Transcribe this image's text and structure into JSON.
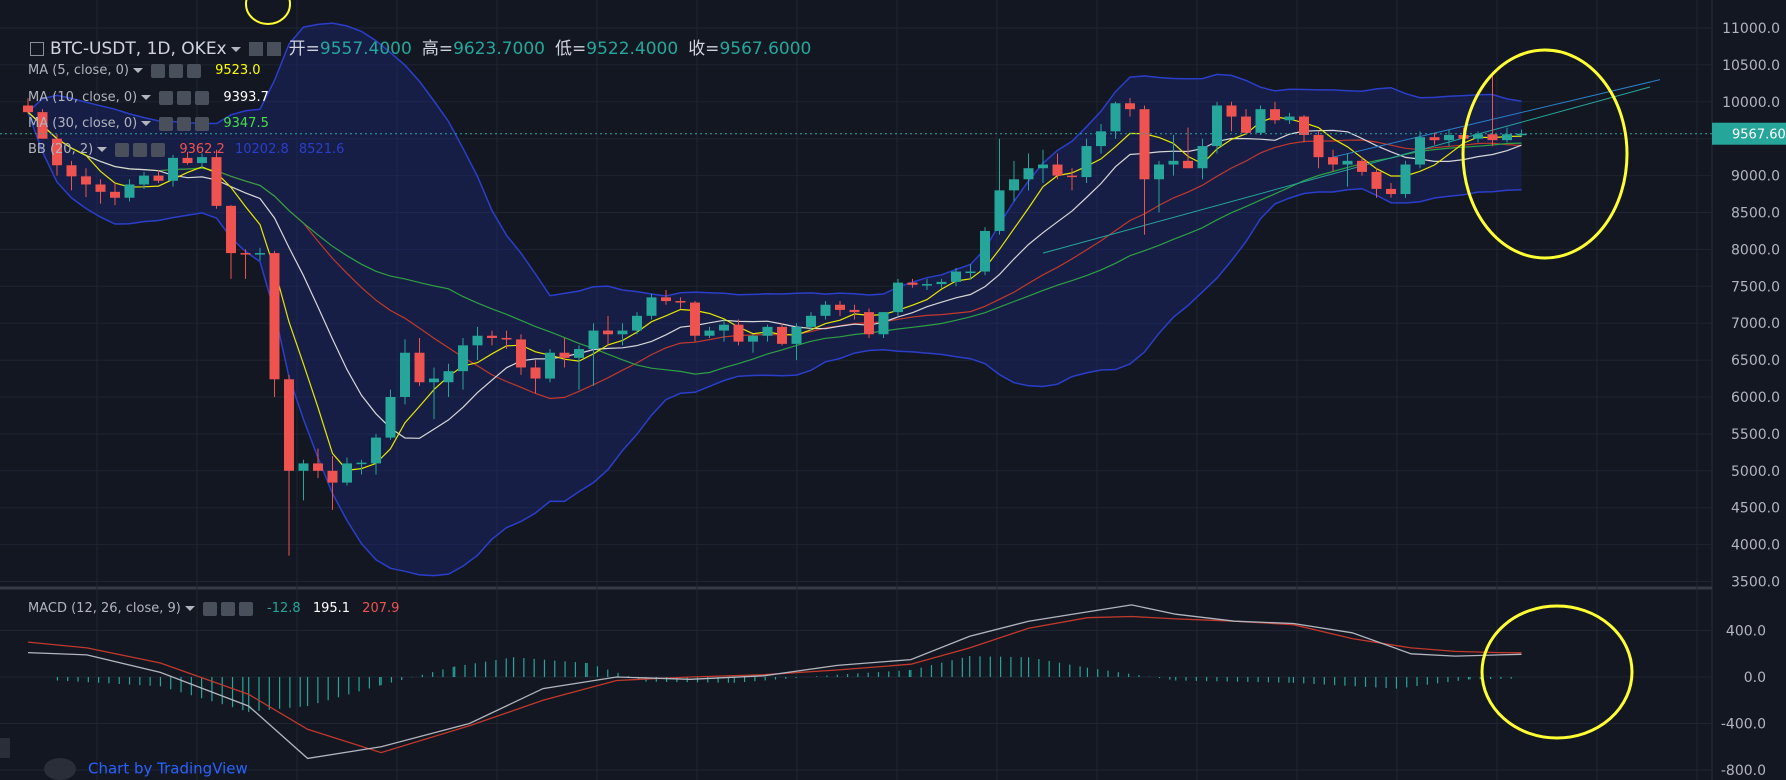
{
  "header": {
    "symbol": "BTC-USDT, 1D, OKEx",
    "open_label": "开=",
    "open": "9557.4000",
    "high_label": "高=",
    "high": "9623.7000",
    "low_label": "低=",
    "low": "9522.4000",
    "close_label": "收=",
    "close": "9567.6000"
  },
  "indicators": {
    "ma5": {
      "label": "MA (5, close, 0)",
      "value": "9523.0",
      "color": "#ffff00"
    },
    "ma10": {
      "label": "MA (10, close, 0)",
      "value": "9393.7",
      "color": "#ffffff"
    },
    "ma30": {
      "label": "MA (30, close, 0)",
      "value": "9347.5",
      "color": "#44e044"
    },
    "bb": {
      "label": "BB (20, 2)",
      "basis": "9362.2",
      "upper": "10202.8",
      "lower": "8521.6"
    },
    "macd": {
      "label": "MACD (12, 26, close, 9)",
      "hist": "-12.8",
      "macd": "195.1",
      "signal": "207.9"
    }
  },
  "price_badge": "9567.600",
  "footer": {
    "attribution": "Chart by TradingView"
  },
  "colors": {
    "background": "#131722",
    "up": "#26a69a",
    "down": "#ef5350",
    "bb_band": "#1e2a8a",
    "bb_line": "#2b3ec9",
    "ma5": "#e6e600",
    "ma10": "#d7d7d7",
    "ma30": "#2ea043",
    "bb_basis": "#c0392b",
    "macd_line": "#b2b5be",
    "signal_line": "#c0392b",
    "highlight_circle": "#ffff33"
  },
  "chart_data": [
    {
      "type": "candlestick",
      "title": "BTC-USDT, 1D, OKEx",
      "ylim": [
        3500,
        11000
      ],
      "y_ticks": [
        "11000.0",
        "10500.0",
        "10000.0",
        "9500.0",
        "9000.0",
        "8500.0",
        "8000.0",
        "7500.0",
        "7000.0",
        "6500.0",
        "6000.0",
        "5500.0",
        "5000.0",
        "4500.0",
        "4000.0",
        "3500.0"
      ],
      "candles": [
        [
          9950,
          10050,
          9840,
          9860
        ],
        [
          9860,
          9900,
          9500,
          9500
        ],
        [
          9500,
          9560,
          9000,
          9140
        ],
        [
          9140,
          9200,
          8800,
          8990
        ],
        [
          8990,
          9100,
          8710,
          8880
        ],
        [
          8880,
          8950,
          8620,
          8780
        ],
        [
          8780,
          8900,
          8600,
          8700
        ],
        [
          8700,
          8950,
          8650,
          8880
        ],
        [
          8880,
          9050,
          8820,
          9000
        ],
        [
          9000,
          9080,
          8900,
          8930
        ],
        [
          8930,
          9280,
          8850,
          9240
        ],
        [
          9240,
          9320,
          9150,
          9170
        ],
        [
          9170,
          9300,
          9100,
          9250
        ],
        [
          9250,
          9350,
          8550,
          8590
        ],
        [
          8590,
          8600,
          7600,
          7950
        ],
        [
          7950,
          8000,
          7600,
          7940
        ],
        [
          7940,
          8020,
          7850,
          7950
        ],
        [
          7950,
          7980,
          6000,
          6240
        ],
        [
          6240,
          6300,
          3850,
          5000
        ],
        [
          5000,
          5150,
          4600,
          5100
        ],
        [
          5100,
          5300,
          4900,
          5000
        ],
        [
          5000,
          5200,
          4470,
          4840
        ],
        [
          4840,
          5180,
          4800,
          5100
        ],
        [
          5100,
          5150,
          4950,
          5110
        ],
        [
          5100,
          5500,
          4950,
          5450
        ],
        [
          5450,
          6100,
          5420,
          6000
        ],
        [
          6000,
          6780,
          5900,
          6600
        ],
        [
          6600,
          6800,
          6150,
          6200
        ],
        [
          6200,
          6400,
          5700,
          6250
        ],
        [
          6200,
          6450,
          6000,
          6350
        ],
        [
          6350,
          6800,
          6100,
          6700
        ],
        [
          6700,
          6950,
          6500,
          6830
        ],
        [
          6830,
          6900,
          6700,
          6800
        ],
        [
          6800,
          6900,
          6650,
          6780
        ],
        [
          6780,
          6850,
          6300,
          6400
        ],
        [
          6400,
          6500,
          6050,
          6250
        ],
        [
          6250,
          6650,
          6200,
          6600
        ],
        [
          6600,
          6800,
          6400,
          6530
        ],
        [
          6530,
          6700,
          6100,
          6650
        ],
        [
          6650,
          7000,
          6150,
          6900
        ],
        [
          6900,
          7100,
          6700,
          6850
        ],
        [
          6850,
          7000,
          6700,
          6900
        ],
        [
          6900,
          7150,
          6850,
          7100
        ],
        [
          7100,
          7400,
          7050,
          7350
        ],
        [
          7350,
          7450,
          7250,
          7300
        ],
        [
          7300,
          7350,
          7200,
          7280
        ],
        [
          7280,
          7300,
          6750,
          6830
        ],
        [
          6830,
          6950,
          6800,
          6900
        ],
        [
          6900,
          7050,
          6750,
          6980
        ],
        [
          6980,
          7050,
          6700,
          6750
        ],
        [
          6750,
          6850,
          6600,
          6830
        ],
        [
          6830,
          6980,
          6750,
          6950
        ],
        [
          6950,
          7000,
          6700,
          6720
        ],
        [
          6720,
          7000,
          6500,
          6950
        ],
        [
          6950,
          7150,
          6900,
          7100
        ],
        [
          7100,
          7300,
          7050,
          7250
        ],
        [
          7250,
          7300,
          7100,
          7180
        ],
        [
          7180,
          7250,
          7050,
          7150
        ],
        [
          7150,
          7200,
          6800,
          6850
        ],
        [
          6850,
          7150,
          6800,
          7150
        ],
        [
          7150,
          7600,
          7100,
          7550
        ],
        [
          7550,
          7600,
          7480,
          7520
        ],
        [
          7520,
          7600,
          7450,
          7530
        ],
        [
          7530,
          7600,
          7480,
          7560
        ],
        [
          7560,
          7750,
          7500,
          7700
        ],
        [
          7700,
          7800,
          7600,
          7700
        ],
        [
          7700,
          8300,
          7650,
          8250
        ],
        [
          8250,
          9500,
          8200,
          8800
        ],
        [
          8800,
          9200,
          8650,
          8950
        ],
        [
          8950,
          9300,
          8800,
          9100
        ],
        [
          9100,
          9350,
          8900,
          9150
        ],
        [
          9150,
          9300,
          8950,
          9000
        ],
        [
          9000,
          9100,
          8800,
          8980
        ],
        [
          8980,
          9500,
          8900,
          9400
        ],
        [
          9400,
          9700,
          9300,
          9600
        ],
        [
          9600,
          10000,
          9500,
          9980
        ],
        [
          9980,
          10050,
          9800,
          9900
        ],
        [
          9900,
          9950,
          8200,
          8950
        ],
        [
          8950,
          9200,
          8500,
          9150
        ],
        [
          9150,
          9550,
          9000,
          9200
        ],
        [
          9200,
          9650,
          9100,
          9100
        ],
        [
          9100,
          9500,
          8950,
          9400
        ],
        [
          9400,
          10000,
          9300,
          9950
        ],
        [
          9950,
          10000,
          9600,
          9800
        ],
        [
          9800,
          9900,
          9550,
          9580
        ],
        [
          9580,
          9950,
          9550,
          9900
        ],
        [
          9900,
          10000,
          9700,
          9750
        ],
        [
          9750,
          9850,
          9700,
          9800
        ],
        [
          9800,
          9820,
          9450,
          9550
        ],
        [
          9550,
          9600,
          9100,
          9250
        ],
        [
          9250,
          9350,
          9050,
          9150
        ],
        [
          9150,
          9300,
          8850,
          9200
        ],
        [
          9200,
          9250,
          9000,
          9050
        ],
        [
          9050,
          9100,
          8700,
          8820
        ],
        [
          8820,
          8900,
          8700,
          8750
        ],
        [
          8750,
          9200,
          8700,
          9150
        ],
        [
          9150,
          9600,
          9100,
          9520
        ],
        [
          9520,
          9580,
          9420,
          9480
        ],
        [
          9480,
          9620,
          9400,
          9550
        ],
        [
          9550,
          9650,
          9450,
          9500
        ],
        [
          9500,
          9600,
          9450,
          9560
        ],
        [
          9560,
          10350,
          9400,
          9480
        ],
        [
          9480,
          9650,
          9450,
          9560
        ],
        [
          9557.4,
          9623.7,
          9522.4,
          9567.6
        ]
      ]
    },
    {
      "type": "line",
      "title": "MACD (12, 26, close, 9)",
      "ylim": [
        -850,
        600
      ],
      "y_ticks": [
        "400.0",
        "0.0",
        "-400.0",
        "-800.0"
      ],
      "series": [
        {
          "name": "MACD",
          "points": [
            [
              0,
              210
            ],
            [
              8,
              190
            ],
            [
              18,
              40
            ],
            [
              30,
              -250
            ],
            [
              38,
              -700
            ],
            [
              48,
              -600
            ],
            [
              60,
              -400
            ],
            [
              70,
              -100
            ],
            [
              80,
              0
            ],
            [
              90,
              -20
            ],
            [
              100,
              10
            ],
            [
              110,
              100
            ],
            [
              120,
              150
            ],
            [
              128,
              350
            ],
            [
              136,
              480
            ],
            [
              144,
              560
            ],
            [
              150,
              620
            ],
            [
              156,
              540
            ],
            [
              164,
              480
            ],
            [
              172,
              460
            ],
            [
              180,
              380
            ],
            [
              188,
              200
            ],
            [
              194,
              180
            ],
            [
              200,
              190
            ],
            [
              203,
              195
            ]
          ]
        },
        {
          "name": "Signal",
          "points": [
            [
              0,
              300
            ],
            [
              8,
              250
            ],
            [
              18,
              120
            ],
            [
              30,
              -150
            ],
            [
              38,
              -450
            ],
            [
              48,
              -650
            ],
            [
              60,
              -420
            ],
            [
              70,
              -200
            ],
            [
              80,
              -30
            ],
            [
              90,
              0
            ],
            [
              100,
              20
            ],
            [
              110,
              60
            ],
            [
              120,
              110
            ],
            [
              128,
              250
            ],
            [
              136,
              420
            ],
            [
              144,
              510
            ],
            [
              150,
              520
            ],
            [
              156,
              500
            ],
            [
              164,
              480
            ],
            [
              172,
              450
            ],
            [
              180,
              330
            ],
            [
              188,
              250
            ],
            [
              194,
              220
            ],
            [
              200,
              210
            ],
            [
              203,
              208
            ]
          ]
        }
      ],
      "histogram": [
        [
          4,
          -30
        ],
        [
          18,
          -80
        ],
        [
          30,
          -300
        ],
        [
          38,
          -250
        ],
        [
          48,
          -70
        ],
        [
          58,
          90
        ],
        [
          66,
          170
        ],
        [
          76,
          120
        ],
        [
          84,
          -40
        ],
        [
          96,
          -50
        ],
        [
          110,
          20
        ],
        [
          120,
          60
        ],
        [
          128,
          180
        ],
        [
          136,
          170
        ],
        [
          144,
          80
        ],
        [
          156,
          -30
        ],
        [
          172,
          -50
        ],
        [
          186,
          -100
        ],
        [
          196,
          -20
        ],
        [
          203,
          -12.8
        ]
      ]
    }
  ]
}
